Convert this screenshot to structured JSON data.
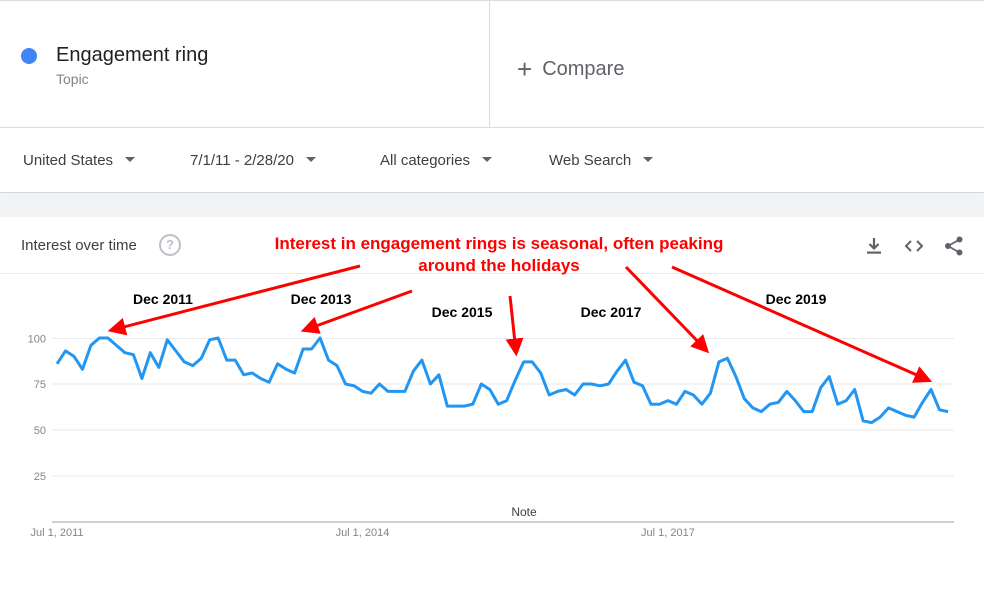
{
  "term": {
    "name": "Engagement ring",
    "type": "Topic",
    "dot_color": "#4285f4"
  },
  "compare": {
    "icon": "plus-icon",
    "label": "Compare"
  },
  "filters": [
    {
      "label": "United States"
    },
    {
      "label": "7/1/11 - 2/28/20"
    },
    {
      "label": "All categories"
    },
    {
      "label": "Web Search"
    }
  ],
  "panel": {
    "title": "Interest over time",
    "help_icon": "help-icon",
    "tools": [
      "download-icon",
      "embed-icon",
      "share-icon"
    ]
  },
  "annotation": {
    "line1": "Interest in engagement rings is seasonal, often peaking",
    "line2": "around the holidays",
    "color": "#ff0000",
    "peak_labels": [
      "Dec 2011",
      "Dec 2013",
      "Dec 2015",
      "Dec 2017",
      "Dec 2019"
    ]
  },
  "chart_data": {
    "type": "line",
    "series": [
      {
        "name": "Engagement ring",
        "color": "#2196f3",
        "values": [
          86,
          93,
          90,
          83,
          96,
          100,
          100,
          96,
          92,
          91,
          78,
          92,
          84,
          99,
          93,
          87,
          85,
          89,
          99,
          100,
          88,
          88,
          80,
          81,
          78,
          76,
          86,
          83,
          81,
          94,
          94,
          100,
          88,
          85,
          75,
          74,
          71,
          70,
          75,
          71,
          71,
          71,
          82,
          88,
          75,
          80,
          63,
          63,
          63,
          64,
          75,
          72,
          64,
          66,
          77,
          87,
          87,
          81,
          69,
          71,
          72,
          69,
          75,
          75,
          74,
          75,
          82,
          88,
          76,
          74,
          64,
          64,
          66,
          64,
          71,
          69,
          64,
          70,
          87,
          89,
          79,
          67,
          62,
          60,
          64,
          65,
          71,
          66,
          60,
          60,
          73,
          79,
          64,
          66,
          72,
          55,
          54,
          57,
          62,
          60,
          58,
          57,
          65,
          72,
          61,
          60
        ]
      }
    ],
    "x_start": "Jul 2011",
    "x_end": "Feb 2020",
    "x_ticks": [
      "Jul 1, 2011",
      "Jul 1, 2014",
      "Jul 1, 2017"
    ],
    "y_ticks": [
      100,
      75,
      50,
      25
    ],
    "ylim": [
      0,
      100
    ],
    "note_label": "Note",
    "grid": true
  }
}
